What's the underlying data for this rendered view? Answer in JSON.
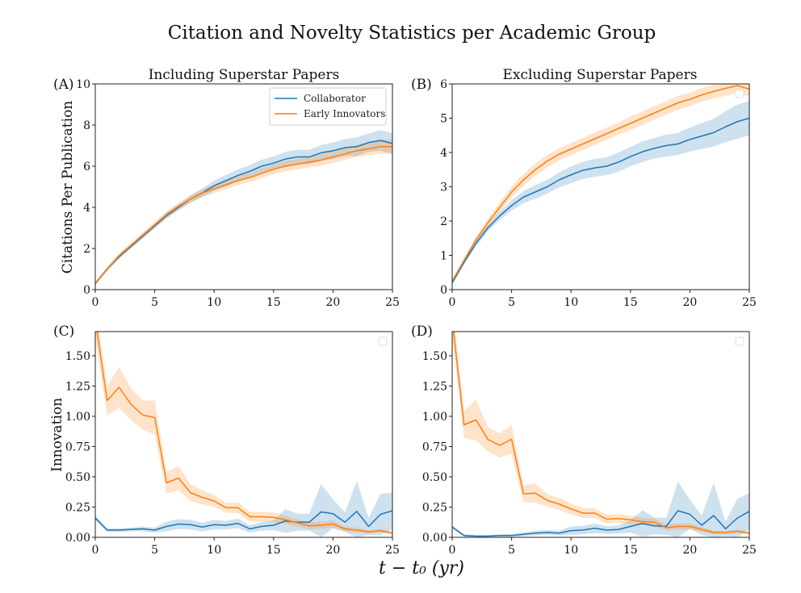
{
  "figure": {
    "suptitle": "Citation and Novelty Statistics per Academic Group",
    "xlabel": "t − t₀ (yr)"
  },
  "colors": {
    "Collaborator": "#1f77b4",
    "Early Innovators": "#ff7f0e"
  },
  "chart_data": [
    {
      "type": "line",
      "panel": "(A)",
      "title": "Including Superstar Papers",
      "xlabel": "",
      "ylabel": "Citations Per Publication",
      "xlim": [
        0,
        25
      ],
      "ylim": [
        0,
        10
      ],
      "xticks": [
        0,
        5,
        10,
        15,
        20,
        25
      ],
      "yticks": [
        0,
        2,
        4,
        6,
        8,
        10
      ],
      "ytick_labels": [
        "0",
        "2",
        "4",
        "6",
        "8",
        "10"
      ],
      "legend": {
        "placement": "top-right",
        "entries": [
          "Collaborator",
          "Early Innovators"
        ]
      },
      "x": [
        0,
        1,
        2,
        3,
        4,
        5,
        6,
        7,
        8,
        9,
        10,
        11,
        12,
        13,
        14,
        15,
        16,
        17,
        18,
        19,
        20,
        21,
        22,
        23,
        24,
        25
      ],
      "series": [
        {
          "name": "Collaborator",
          "values": [
            0.3,
            1.0,
            1.6,
            2.1,
            2.6,
            3.1,
            3.6,
            4.0,
            4.4,
            4.7,
            5.05,
            5.3,
            5.55,
            5.75,
            6.0,
            6.15,
            6.35,
            6.45,
            6.45,
            6.65,
            6.75,
            6.9,
            6.95,
            7.15,
            7.25,
            7.1
          ],
          "band": [
            0.08,
            0.1,
            0.1,
            0.1,
            0.12,
            0.12,
            0.14,
            0.15,
            0.18,
            0.2,
            0.25,
            0.28,
            0.3,
            0.3,
            0.32,
            0.32,
            0.35,
            0.35,
            0.35,
            0.38,
            0.4,
            0.42,
            0.45,
            0.45,
            0.5,
            0.5
          ]
        },
        {
          "name": "Early Innovators",
          "values": [
            0.3,
            1.0,
            1.65,
            2.15,
            2.65,
            3.15,
            3.65,
            4.05,
            4.4,
            4.7,
            4.9,
            5.1,
            5.3,
            5.45,
            5.65,
            5.85,
            6.0,
            6.1,
            6.2,
            6.3,
            6.45,
            6.6,
            6.75,
            6.85,
            6.95,
            6.95
          ],
          "band": [
            0.08,
            0.1,
            0.12,
            0.12,
            0.14,
            0.15,
            0.16,
            0.17,
            0.18,
            0.2,
            0.2,
            0.22,
            0.22,
            0.22,
            0.24,
            0.24,
            0.25,
            0.26,
            0.26,
            0.28,
            0.28,
            0.3,
            0.3,
            0.32,
            0.35,
            0.35
          ]
        }
      ]
    },
    {
      "type": "line",
      "panel": "(B)",
      "title": "Excluding Superstar Papers",
      "xlabel": "",
      "ylabel": "",
      "xlim": [
        0,
        25
      ],
      "ylim": [
        0,
        6
      ],
      "xticks": [
        0,
        5,
        10,
        15,
        20,
        25
      ],
      "yticks": [
        0,
        1,
        2,
        3,
        4,
        5,
        6
      ],
      "ytick_labels": [
        "0",
        "1",
        "2",
        "3",
        "4",
        "5",
        "6"
      ],
      "legend": {
        "placement": "top-right",
        "entries": []
      },
      "x": [
        0,
        1,
        2,
        3,
        4,
        5,
        6,
        7,
        8,
        9,
        10,
        11,
        12,
        13,
        14,
        15,
        16,
        17,
        18,
        19,
        20,
        21,
        22,
        23,
        24,
        25
      ],
      "series": [
        {
          "name": "Collaborator",
          "values": [
            0.2,
            0.8,
            1.35,
            1.8,
            2.15,
            2.45,
            2.7,
            2.85,
            3.0,
            3.2,
            3.35,
            3.48,
            3.55,
            3.6,
            3.72,
            3.88,
            4.02,
            4.12,
            4.2,
            4.25,
            4.38,
            4.48,
            4.58,
            4.75,
            4.9,
            5.0
          ],
          "band": [
            0.05,
            0.08,
            0.1,
            0.1,
            0.12,
            0.15,
            0.18,
            0.2,
            0.2,
            0.22,
            0.24,
            0.25,
            0.26,
            0.26,
            0.28,
            0.28,
            0.3,
            0.3,
            0.32,
            0.32,
            0.35,
            0.38,
            0.4,
            0.45,
            0.5,
            0.5
          ]
        },
        {
          "name": "Early Innovators",
          "values": [
            0.25,
            0.85,
            1.45,
            1.95,
            2.4,
            2.85,
            3.2,
            3.5,
            3.75,
            3.95,
            4.1,
            4.25,
            4.4,
            4.55,
            4.7,
            4.85,
            5.0,
            5.15,
            5.3,
            5.45,
            5.55,
            5.68,
            5.78,
            5.87,
            5.95,
            5.85
          ],
          "band": [
            0.05,
            0.08,
            0.1,
            0.12,
            0.14,
            0.16,
            0.18,
            0.18,
            0.18,
            0.18,
            0.18,
            0.18,
            0.18,
            0.18,
            0.18,
            0.2,
            0.2,
            0.2,
            0.2,
            0.2,
            0.2,
            0.2,
            0.2,
            0.22,
            0.22,
            0.22
          ]
        }
      ]
    },
    {
      "type": "line",
      "panel": "(C)",
      "title": "",
      "xlabel": "",
      "ylabel": "Innovation",
      "xlim": [
        0,
        25
      ],
      "ylim": [
        0,
        1.7
      ],
      "xticks": [
        0,
        5,
        10,
        15,
        20,
        25
      ],
      "yticks": [
        0,
        0.25,
        0.5,
        0.75,
        1.0,
        1.25,
        1.5
      ],
      "ytick_labels": [
        "0.00",
        "0.25",
        "0.50",
        "0.75",
        "1.00",
        "1.25",
        "1.50"
      ],
      "legend": {
        "placement": "top-right",
        "entries": []
      },
      "x": [
        0,
        1,
        2,
        3,
        4,
        5,
        6,
        7,
        8,
        9,
        10,
        11,
        12,
        13,
        14,
        15,
        16,
        17,
        18,
        19,
        20,
        21,
        22,
        23,
        24,
        25
      ],
      "series": [
        {
          "name": "Collaborator",
          "values": [
            0.16,
            0.06,
            0.06,
            0.065,
            0.07,
            0.06,
            0.09,
            0.11,
            0.105,
            0.085,
            0.105,
            0.1,
            0.115,
            0.07,
            0.09,
            0.1,
            0.135,
            0.125,
            0.125,
            0.21,
            0.195,
            0.125,
            0.215,
            0.09,
            0.19,
            0.22
          ],
          "band": [
            0.02,
            0.015,
            0.015,
            0.015,
            0.02,
            0.02,
            0.04,
            0.04,
            0.04,
            0.035,
            0.04,
            0.035,
            0.04,
            0.03,
            0.035,
            0.04,
            0.1,
            0.07,
            0.07,
            0.23,
            0.12,
            0.08,
            0.25,
            0.07,
            0.17,
            0.15
          ]
        },
        {
          "name": "Early Innovators",
          "values": [
            1.8,
            1.13,
            1.24,
            1.1,
            1.01,
            0.99,
            0.45,
            0.49,
            0.37,
            0.33,
            0.3,
            0.245,
            0.245,
            0.17,
            0.17,
            0.165,
            0.145,
            0.12,
            0.095,
            0.1,
            0.11,
            0.07,
            0.06,
            0.045,
            0.055,
            0.035
          ],
          "band": [
            0.15,
            0.12,
            0.17,
            0.13,
            0.12,
            0.14,
            0.09,
            0.1,
            0.07,
            0.06,
            0.05,
            0.04,
            0.045,
            0.04,
            0.04,
            0.04,
            0.035,
            0.03,
            0.03,
            0.03,
            0.03,
            0.02,
            0.02,
            0.015,
            0.015,
            0.015
          ]
        }
      ]
    },
    {
      "type": "line",
      "panel": "(D)",
      "title": "",
      "xlabel": "",
      "ylabel": "",
      "xlim": [
        0,
        25
      ],
      "ylim": [
        0,
        1.7
      ],
      "xticks": [
        0,
        5,
        10,
        15,
        20,
        25
      ],
      "yticks": [
        0,
        0.25,
        0.5,
        0.75,
        1.0,
        1.25,
        1.5
      ],
      "ytick_labels": [
        "0.00",
        "0.25",
        "0.50",
        "0.75",
        "1.00",
        "1.25",
        "1.50"
      ],
      "legend": {
        "placement": "top-right",
        "entries": []
      },
      "x": [
        0,
        1,
        2,
        3,
        4,
        5,
        6,
        7,
        8,
        9,
        10,
        11,
        12,
        13,
        14,
        15,
        16,
        17,
        18,
        19,
        20,
        21,
        22,
        23,
        24,
        25
      ],
      "series": [
        {
          "name": "Collaborator",
          "values": [
            0.085,
            0.015,
            0.01,
            0.01,
            0.015,
            0.015,
            0.025,
            0.035,
            0.04,
            0.035,
            0.055,
            0.06,
            0.075,
            0.06,
            0.065,
            0.09,
            0.115,
            0.095,
            0.09,
            0.22,
            0.19,
            0.1,
            0.18,
            0.07,
            0.16,
            0.215
          ],
          "band": [
            0.015,
            0.01,
            0.008,
            0.008,
            0.01,
            0.01,
            0.015,
            0.02,
            0.02,
            0.02,
            0.035,
            0.035,
            0.04,
            0.03,
            0.035,
            0.05,
            0.11,
            0.07,
            0.07,
            0.24,
            0.12,
            0.08,
            0.27,
            0.06,
            0.16,
            0.15
          ]
        },
        {
          "name": "Early Innovators",
          "values": [
            1.8,
            0.93,
            0.97,
            0.81,
            0.76,
            0.81,
            0.36,
            0.365,
            0.305,
            0.275,
            0.235,
            0.2,
            0.2,
            0.15,
            0.155,
            0.145,
            0.13,
            0.125,
            0.08,
            0.09,
            0.09,
            0.065,
            0.04,
            0.04,
            0.05,
            0.035
          ],
          "band": [
            0.15,
            0.11,
            0.17,
            0.1,
            0.1,
            0.12,
            0.07,
            0.08,
            0.05,
            0.05,
            0.045,
            0.04,
            0.04,
            0.035,
            0.035,
            0.035,
            0.03,
            0.03,
            0.025,
            0.025,
            0.025,
            0.02,
            0.015,
            0.015,
            0.015,
            0.012
          ]
        }
      ]
    }
  ]
}
